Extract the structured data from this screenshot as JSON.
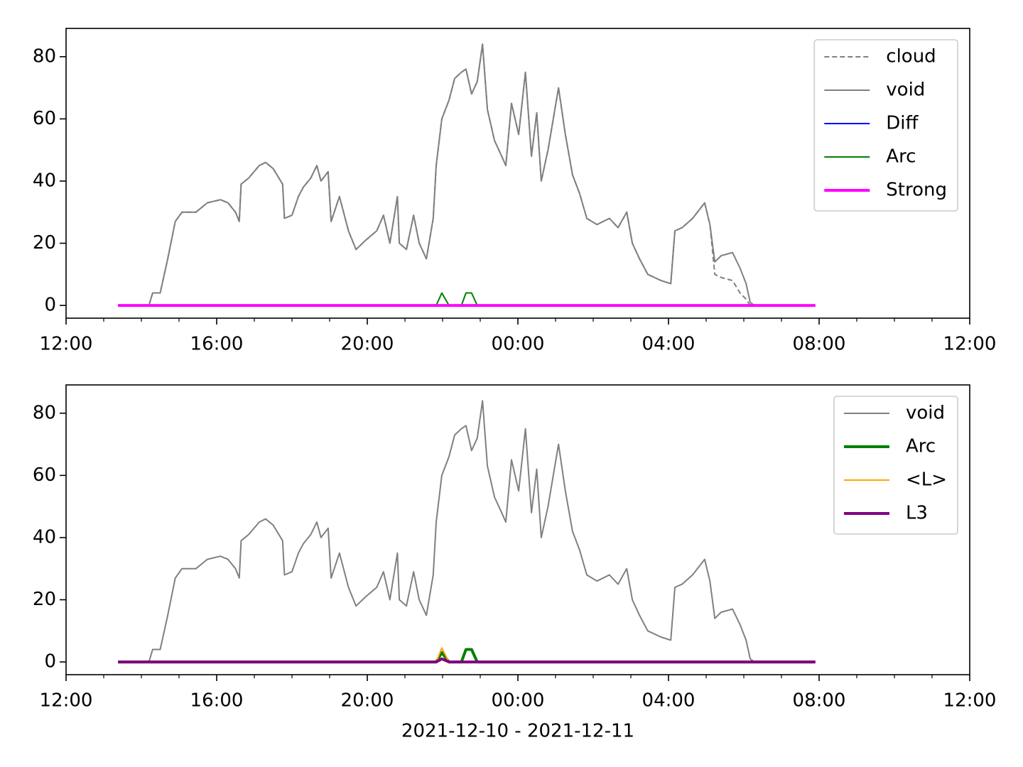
{
  "chart_data": [
    {
      "type": "line",
      "x": [
        13.38,
        14.2,
        14.3,
        14.5,
        14.7,
        14.9,
        15.08,
        15.45,
        15.75,
        16.1,
        16.3,
        16.5,
        16.6,
        16.65,
        16.85,
        17.13,
        17.3,
        17.5,
        17.75,
        17.8,
        18.0,
        18.17,
        18.3,
        18.5,
        18.66,
        18.77,
        18.96,
        19.04,
        19.26,
        19.5,
        19.7,
        19.96,
        20.25,
        20.43,
        20.6,
        20.8,
        20.85,
        21.04,
        21.23,
        21.38,
        21.57,
        21.75,
        21.83,
        21.98,
        22.17,
        22.32,
        22.5,
        22.62,
        22.77,
        22.92,
        23.06,
        23.19,
        23.38,
        23.57,
        23.68,
        23.83,
        24.02,
        24.2,
        24.36,
        24.5,
        24.62,
        24.8,
        25.08,
        25.26,
        25.45,
        25.64,
        25.83,
        26.1,
        26.43,
        26.66,
        26.89,
        27.04,
        27.23,
        27.45,
        27.8,
        28.06,
        28.17,
        28.36,
        28.64,
        28.96,
        29.1,
        29.23,
        29.4,
        29.7,
        29.9,
        30.06,
        30.17,
        30.28,
        31.9
      ],
      "series": [
        {
          "name": "cloud",
          "color": "#808080",
          "width": 2,
          "dash": true,
          "values": [
            0,
            0,
            4,
            4,
            15,
            27,
            30,
            30,
            33,
            34,
            33,
            30,
            27,
            39,
            41,
            45,
            46,
            44,
            39,
            28,
            29,
            35,
            38,
            41,
            45,
            40,
            43,
            27,
            35,
            24,
            18,
            21,
            24,
            29,
            20,
            35,
            20,
            18,
            29,
            20,
            15,
            28,
            45,
            60,
            66,
            73,
            75,
            76,
            68,
            72,
            84,
            63,
            53,
            48,
            45,
            65,
            55,
            75,
            48,
            62,
            40,
            50,
            70,
            55,
            42,
            36,
            28,
            26,
            28,
            25,
            30,
            20,
            15,
            10,
            8,
            7,
            24,
            25,
            28,
            33,
            26,
            10,
            9,
            8,
            4,
            2,
            0,
            0,
            0
          ]
        },
        {
          "name": "void",
          "color": "#808080",
          "width": 2,
          "dash": false,
          "values": [
            0,
            0,
            4,
            4,
            15,
            27,
            30,
            30,
            33,
            34,
            33,
            30,
            27,
            39,
            41,
            45,
            46,
            44,
            39,
            28,
            29,
            35,
            38,
            41,
            45,
            40,
            43,
            27,
            35,
            24,
            18,
            21,
            24,
            29,
            20,
            35,
            20,
            18,
            29,
            20,
            15,
            28,
            45,
            60,
            66,
            73,
            75,
            76,
            68,
            72,
            84,
            63,
            53,
            48,
            45,
            65,
            55,
            75,
            48,
            62,
            40,
            50,
            70,
            55,
            42,
            36,
            28,
            26,
            28,
            25,
            30,
            20,
            15,
            10,
            8,
            7,
            24,
            25,
            28,
            33,
            26,
            14,
            16,
            17,
            12,
            7,
            1,
            0,
            0
          ]
        },
        {
          "name": "Diff",
          "color": "#0000ff",
          "width": 2,
          "dash": false,
          "values": [
            0,
            0,
            0,
            0,
            0,
            0,
            0,
            0,
            0,
            0,
            0,
            0,
            0,
            0,
            0,
            0,
            0,
            0,
            0,
            0,
            0,
            0,
            0,
            0,
            0,
            0,
            0,
            0,
            0,
            0,
            0,
            0,
            0,
            0,
            0,
            0,
            0,
            0,
            0,
            0,
            0,
            0,
            0,
            0,
            0,
            0,
            0,
            0,
            0,
            0,
            0,
            0,
            0,
            0,
            0,
            0,
            0,
            0,
            0,
            0,
            0,
            0,
            0,
            0,
            0,
            0,
            0,
            0,
            0,
            0,
            0,
            0,
            0,
            0,
            0,
            0,
            0,
            0,
            0,
            0,
            0,
            0,
            0,
            0,
            0,
            0,
            0,
            0,
            0
          ]
        },
        {
          "name": "Arc",
          "color": "#008000",
          "width": 2,
          "dash": false,
          "values": [
            0,
            0,
            0,
            0,
            0,
            0,
            0,
            0,
            0,
            0,
            0,
            0,
            0,
            0,
            0,
            0,
            0,
            0,
            0,
            0,
            0,
            0,
            0,
            0,
            0,
            0,
            0,
            0,
            0,
            0,
            0,
            0,
            0,
            0,
            0,
            0,
            0,
            0,
            0,
            0,
            0,
            0,
            0,
            4,
            0,
            0,
            0,
            4,
            4,
            0,
            0,
            0,
            0,
            0,
            0,
            0,
            0,
            0,
            0,
            0,
            0,
            0,
            0,
            0,
            0,
            0,
            0,
            0,
            0,
            0,
            0,
            0,
            0,
            0,
            0,
            0,
            0,
            0,
            0,
            0,
            0,
            0,
            0,
            0,
            0,
            0,
            0,
            0,
            0
          ]
        },
        {
          "name": "Strong",
          "color": "#ff00ff",
          "width": 4,
          "dash": false,
          "values": [
            0,
            0,
            0,
            0,
            0,
            0,
            0,
            0,
            0,
            0,
            0,
            0,
            0,
            0,
            0,
            0,
            0,
            0,
            0,
            0,
            0,
            0,
            0,
            0,
            0,
            0,
            0,
            0,
            0,
            0,
            0,
            0,
            0,
            0,
            0,
            0,
            0,
            0,
            0,
            0,
            0,
            0,
            0,
            0,
            0,
            0,
            0,
            0,
            0,
            0,
            0,
            0,
            0,
            0,
            0,
            0,
            0,
            0,
            0,
            0,
            0,
            0,
            0,
            0,
            0,
            0,
            0,
            0,
            0,
            0,
            0,
            0,
            0,
            0,
            0,
            0,
            0,
            0,
            0,
            0,
            0,
            0,
            0,
            0,
            0,
            0,
            0,
            0,
            0
          ]
        }
      ],
      "xlim": [
        12,
        36
      ],
      "xticks": [
        {
          "value": 12,
          "label": "12:00"
        },
        {
          "value": 16,
          "label": "16:00"
        },
        {
          "value": 20,
          "label": "20:00"
        },
        {
          "value": 24,
          "label": "00:00"
        },
        {
          "value": 28,
          "label": "04:00"
        },
        {
          "value": 32,
          "label": "08:00"
        },
        {
          "value": 36,
          "label": "12:00"
        }
      ],
      "xminorticks": [
        13,
        14,
        15,
        17,
        18,
        19,
        21,
        22,
        23,
        25,
        26,
        27,
        29,
        30,
        31,
        33,
        34,
        35
      ],
      "ylim": [
        -4.1,
        89.1
      ],
      "yticks": [
        0,
        20,
        40,
        60,
        80
      ],
      "legend": "upper right"
    },
    {
      "type": "line",
      "x": [
        13.38,
        14.2,
        14.3,
        14.5,
        14.7,
        14.9,
        15.08,
        15.45,
        15.75,
        16.1,
        16.3,
        16.5,
        16.6,
        16.65,
        16.85,
        17.13,
        17.3,
        17.5,
        17.75,
        17.8,
        18.0,
        18.17,
        18.3,
        18.5,
        18.66,
        18.77,
        18.96,
        19.04,
        19.26,
        19.5,
        19.7,
        19.96,
        20.25,
        20.43,
        20.6,
        20.8,
        20.85,
        21.04,
        21.23,
        21.38,
        21.57,
        21.75,
        21.83,
        21.98,
        22.17,
        22.32,
        22.5,
        22.62,
        22.77,
        22.92,
        23.06,
        23.19,
        23.38,
        23.57,
        23.68,
        23.83,
        24.02,
        24.2,
        24.36,
        24.5,
        24.62,
        24.8,
        25.08,
        25.26,
        25.45,
        25.64,
        25.83,
        26.1,
        26.43,
        26.66,
        26.89,
        27.04,
        27.23,
        27.45,
        27.8,
        28.06,
        28.17,
        28.36,
        28.64,
        28.96,
        29.1,
        29.23,
        29.4,
        29.7,
        29.9,
        30.06,
        30.17,
        30.28,
        31.9
      ],
      "series": [
        {
          "name": "void",
          "color": "#808080",
          "width": 2,
          "dash": false,
          "values": [
            0,
            0,
            4,
            4,
            15,
            27,
            30,
            30,
            33,
            34,
            33,
            30,
            27,
            39,
            41,
            45,
            46,
            44,
            39,
            28,
            29,
            35,
            38,
            41,
            45,
            40,
            43,
            27,
            35,
            24,
            18,
            21,
            24,
            29,
            20,
            35,
            20,
            18,
            29,
            20,
            15,
            28,
            45,
            60,
            66,
            73,
            75,
            76,
            68,
            72,
            84,
            63,
            53,
            48,
            45,
            65,
            55,
            75,
            48,
            62,
            40,
            50,
            70,
            55,
            42,
            36,
            28,
            26,
            28,
            25,
            30,
            20,
            15,
            10,
            8,
            7,
            24,
            25,
            28,
            33,
            26,
            14,
            16,
            17,
            12,
            7,
            1,
            0,
            0
          ]
        },
        {
          "name": "Arc",
          "color": "#008000",
          "width": 4,
          "dash": false,
          "values": [
            0,
            0,
            0,
            0,
            0,
            0,
            0,
            0,
            0,
            0,
            0,
            0,
            0,
            0,
            0,
            0,
            0,
            0,
            0,
            0,
            0,
            0,
            0,
            0,
            0,
            0,
            0,
            0,
            0,
            0,
            0,
            0,
            0,
            0,
            0,
            0,
            0,
            0,
            0,
            0,
            0,
            0,
            0,
            3,
            0,
            0,
            0,
            4,
            4,
            0,
            0,
            0,
            0,
            0,
            0,
            0,
            0,
            0,
            0,
            0,
            0,
            0,
            0,
            0,
            0,
            0,
            0,
            0,
            0,
            0,
            0,
            0,
            0,
            0,
            0,
            0,
            0,
            0,
            0,
            0,
            0,
            0,
            0,
            0,
            0,
            0,
            0,
            0,
            0
          ]
        },
        {
          "name": "<L>",
          "color": "#ffa500",
          "width": 2,
          "dash": false,
          "values": [
            0,
            0,
            0,
            0,
            0,
            0,
            0,
            0,
            0,
            0,
            0,
            0,
            0,
            0,
            0,
            0,
            0,
            0,
            0,
            0,
            0,
            0,
            0,
            0,
            0,
            0,
            0,
            0,
            0,
            0,
            0,
            0,
            0,
            0,
            0,
            0,
            0,
            0,
            0,
            0,
            0,
            0,
            0,
            4.5,
            0,
            0,
            0,
            0,
            0,
            0,
            0,
            0,
            0,
            0,
            0,
            0,
            0,
            0,
            0,
            0,
            0,
            0,
            0,
            0,
            0,
            0,
            0,
            0,
            0,
            0,
            0,
            0,
            0,
            0,
            0,
            0,
            0,
            0,
            0,
            0,
            0,
            0,
            0,
            0,
            0,
            0,
            0,
            0,
            0
          ]
        },
        {
          "name": "L3",
          "color": "#800080",
          "width": 4,
          "dash": false,
          "values": [
            0,
            0,
            0,
            0,
            0,
            0,
            0,
            0,
            0,
            0,
            0,
            0,
            0,
            0,
            0,
            0,
            0,
            0,
            0,
            0,
            0,
            0,
            0,
            0,
            0,
            0,
            0,
            0,
            0,
            0,
            0,
            0,
            0,
            0,
            0,
            0,
            0,
            0,
            0,
            0,
            0,
            0,
            0,
            1,
            0,
            0,
            0,
            0,
            0,
            0,
            0,
            0,
            0,
            0,
            0,
            0,
            0,
            0,
            0,
            0,
            0,
            0,
            0,
            0,
            0,
            0,
            0,
            0,
            0,
            0,
            0,
            0,
            0,
            0,
            0,
            0,
            0,
            0,
            0,
            0,
            0,
            0,
            0,
            0,
            0,
            0,
            0,
            0,
            0
          ]
        }
      ],
      "xlim": [
        12,
        36
      ],
      "xticks": [
        {
          "value": 12,
          "label": "12:00"
        },
        {
          "value": 16,
          "label": "16:00"
        },
        {
          "value": 20,
          "label": "20:00"
        },
        {
          "value": 24,
          "label": "00:00"
        },
        {
          "value": 28,
          "label": "04:00"
        },
        {
          "value": 32,
          "label": "08:00"
        },
        {
          "value": 36,
          "label": "12:00"
        }
      ],
      "xminorticks": [
        13,
        14,
        15,
        17,
        18,
        19,
        21,
        22,
        23,
        25,
        26,
        27,
        29,
        30,
        31,
        33,
        34,
        35
      ],
      "ylim": [
        -4.1,
        89.1
      ],
      "yticks": [
        0,
        20,
        40,
        60,
        80
      ],
      "legend": "upper right",
      "xlabel": "2021-12-10 - 2021-12-11"
    }
  ]
}
